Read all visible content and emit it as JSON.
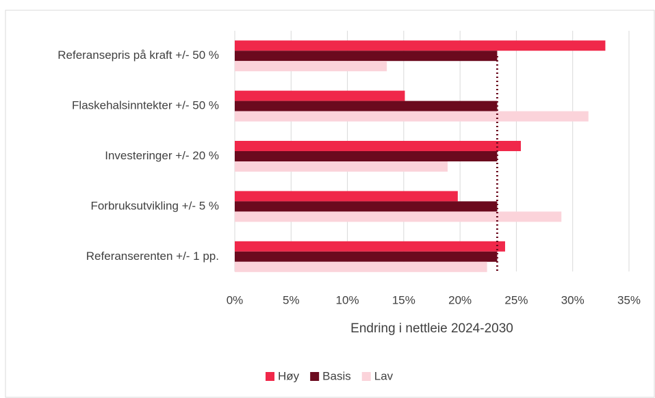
{
  "chart_data": {
    "type": "bar",
    "orientation": "horizontal",
    "x_label": "Endring i nettleie 2024-2030",
    "categories": [
      "Referansepris på kraft +/- 50 %",
      "Flaskehalsinntekter +/- 50 %",
      "Investeringer +/- 20 %",
      "Forbruksutvikling +/- 5 %",
      "Referanserenten +/- 1 pp."
    ],
    "series": [
      {
        "name": "Høy",
        "color": "#f0284a",
        "values": [
          32.9,
          15.1,
          25.4,
          19.8,
          24.0
        ]
      },
      {
        "name": "Basis",
        "color": "#6b0a1e",
        "values": [
          23.3,
          23.3,
          23.3,
          23.3,
          23.3
        ]
      },
      {
        "name": "Lav",
        "color": "#fbd3da",
        "values": [
          13.5,
          31.4,
          18.9,
          29.0,
          22.4
        ]
      }
    ],
    "xlim": [
      0,
      35
    ],
    "xticks": [
      {
        "value": 0,
        "label": "0%"
      },
      {
        "value": 5,
        "label": "5%"
      },
      {
        "value": 10,
        "label": "10%"
      },
      {
        "value": 15,
        "label": "15%"
      },
      {
        "value": 20,
        "label": "20%"
      },
      {
        "value": 25,
        "label": "25%"
      },
      {
        "value": 30,
        "label": "30%"
      },
      {
        "value": 35,
        "label": "35%"
      }
    ],
    "grid": true,
    "legend": "bottom"
  }
}
